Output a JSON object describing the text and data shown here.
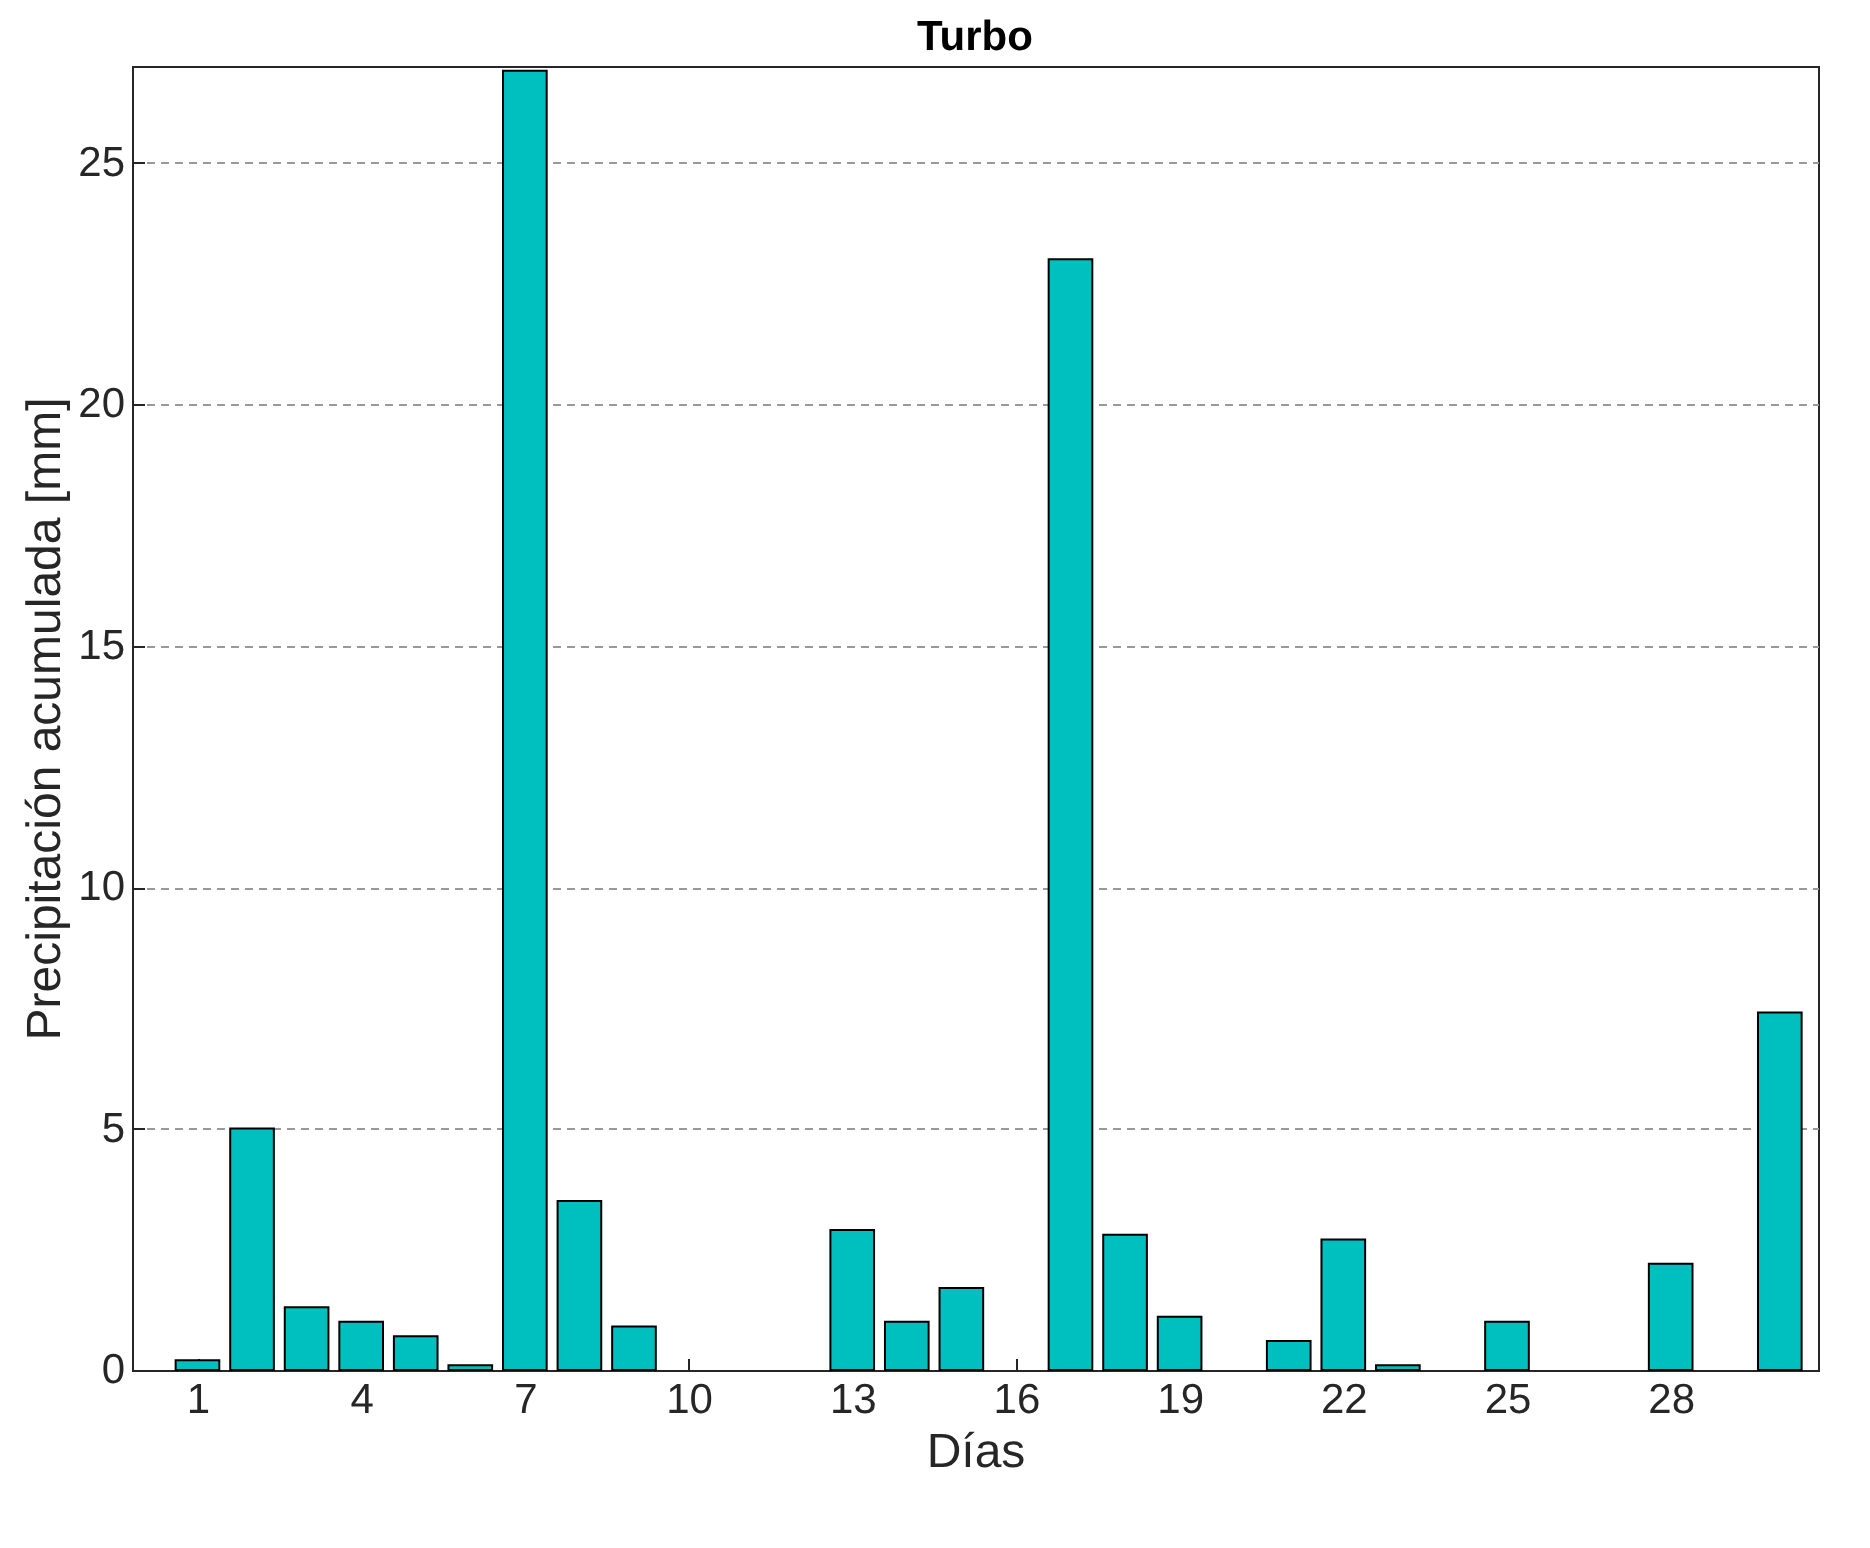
{
  "chart_data": {
    "type": "bar",
    "title": "Turbo",
    "xlabel": "Días",
    "ylabel": "Precipitación acumulada [mm]",
    "x": [
      1,
      2,
      3,
      4,
      5,
      6,
      7,
      8,
      9,
      10,
      11,
      12,
      13,
      14,
      15,
      16,
      17,
      18,
      19,
      20,
      21,
      22,
      23,
      24,
      25,
      26,
      27,
      28,
      29,
      30
    ],
    "values": [
      0.2,
      5.0,
      1.3,
      1.0,
      0.7,
      0.1,
      26.9,
      3.5,
      0.9,
      0,
      0,
      0,
      2.9,
      1.0,
      1.7,
      0,
      23.0,
      2.8,
      1.1,
      0,
      0.6,
      2.7,
      0.1,
      0,
      1.0,
      0,
      0,
      2.2,
      0,
      7.4
    ],
    "color": "#00bfbf",
    "xlim": [
      -0.2,
      30.7
    ],
    "xticks": [
      1,
      4,
      7,
      10,
      13,
      16,
      19,
      22,
      25,
      28
    ],
    "ylim": [
      0,
      27
    ],
    "yticks": [
      0,
      5,
      10,
      15,
      20,
      25
    ],
    "grid": "y"
  }
}
